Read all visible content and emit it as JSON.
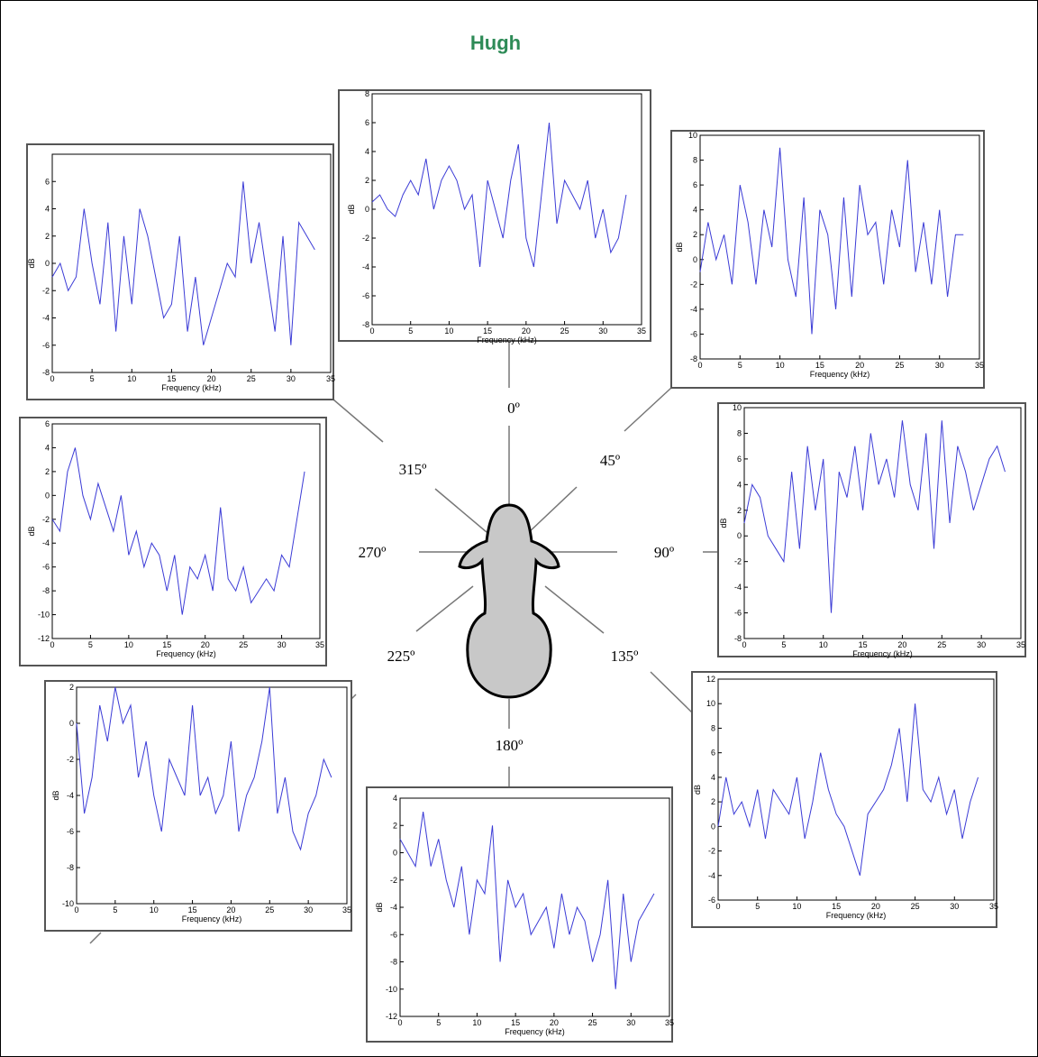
{
  "title": "Hugh",
  "chart_data": [
    {
      "type": "line",
      "annotation": "0º",
      "xlabel": "Frequency (kHz)",
      "ylabel": "dB",
      "color": "#3b3bd6",
      "x": [
        0,
        1,
        2,
        3,
        4,
        5,
        6,
        7,
        8,
        9,
        10,
        11,
        12,
        13,
        14,
        15,
        16,
        17,
        18,
        19,
        20,
        21,
        22,
        23,
        24,
        25,
        26,
        27,
        28,
        29,
        30,
        31,
        32,
        33
      ],
      "values": [
        0.5,
        1,
        0,
        -0.5,
        1,
        2,
        1,
        3.5,
        0,
        2,
        3,
        2,
        0,
        1,
        -4,
        2,
        0,
        -2,
        2,
        4.5,
        -2,
        -4,
        1,
        6,
        -1,
        2,
        1,
        0,
        2,
        -2,
        0,
        -3,
        -2,
        1
      ],
      "xlim": [
        0,
        35
      ],
      "xticks": [
        0,
        5,
        10,
        15,
        20,
        25,
        30,
        35
      ],
      "ylim": [
        -8,
        8
      ],
      "yticks": [
        -8,
        -6,
        -4,
        -2,
        0,
        2,
        4,
        6,
        8
      ]
    },
    {
      "type": "line",
      "annotation": "45º",
      "xlabel": "Frequency (kHz)",
      "ylabel": "dB",
      "color": "#3b3bd6",
      "x": [
        0,
        1,
        2,
        3,
        4,
        5,
        6,
        7,
        8,
        9,
        10,
        11,
        12,
        13,
        14,
        15,
        16,
        17,
        18,
        19,
        20,
        21,
        22,
        23,
        24,
        25,
        26,
        27,
        28,
        29,
        30,
        31,
        32,
        33
      ],
      "values": [
        -1,
        3,
        0,
        2,
        -2,
        6,
        3,
        -2,
        4,
        1,
        9,
        0,
        -3,
        5,
        -6,
        4,
        2,
        -4,
        5,
        -3,
        6,
        2,
        3,
        -2,
        4,
        1,
        8,
        -1,
        3,
        -2,
        4,
        -3,
        2,
        2
      ],
      "xlim": [
        0,
        35
      ],
      "xticks": [
        0,
        5,
        10,
        15,
        20,
        25,
        30,
        35
      ],
      "ylim": [
        -8,
        10
      ],
      "yticks": [
        -8,
        -6,
        -4,
        -2,
        0,
        2,
        4,
        6,
        8,
        10
      ]
    },
    {
      "type": "line",
      "annotation": "90º",
      "xlabel": "Frequency (kHz)",
      "ylabel": "dB",
      "color": "#3b3bd6",
      "x": [
        0,
        1,
        2,
        3,
        4,
        5,
        6,
        7,
        8,
        9,
        10,
        11,
        12,
        13,
        14,
        15,
        16,
        17,
        18,
        19,
        20,
        21,
        22,
        23,
        24,
        25,
        26,
        27,
        28,
        29,
        30,
        31,
        32,
        33
      ],
      "values": [
        1,
        4,
        3,
        0,
        -1,
        -2,
        5,
        -1,
        7,
        2,
        6,
        -6,
        5,
        3,
        7,
        2,
        8,
        4,
        6,
        3,
        9,
        4,
        2,
        8,
        -1,
        9,
        1,
        7,
        5,
        2,
        4,
        6,
        7,
        5
      ],
      "xlim": [
        0,
        35
      ],
      "xticks": [
        0,
        5,
        10,
        15,
        20,
        25,
        30,
        35
      ],
      "ylim": [
        -8,
        10
      ],
      "yticks": [
        -8,
        -6,
        -4,
        -2,
        0,
        2,
        4,
        6,
        8,
        10
      ]
    },
    {
      "type": "line",
      "annotation": "135º",
      "xlabel": "Frequency (kHz)",
      "ylabel": "dB",
      "color": "#3b3bd6",
      "x": [
        0,
        1,
        2,
        3,
        4,
        5,
        6,
        7,
        8,
        9,
        10,
        11,
        12,
        13,
        14,
        15,
        16,
        17,
        18,
        19,
        20,
        21,
        22,
        23,
        24,
        25,
        26,
        27,
        28,
        29,
        30,
        31,
        32,
        33
      ],
      "values": [
        0,
        4,
        1,
        2,
        0,
        3,
        -1,
        3,
        2,
        1,
        4,
        -1,
        2,
        6,
        3,
        1,
        0,
        -2,
        -4,
        1,
        2,
        3,
        5,
        8,
        2,
        10,
        3,
        2,
        4,
        1,
        3,
        -1,
        2,
        4
      ],
      "xlim": [
        0,
        35
      ],
      "xticks": [
        0,
        5,
        10,
        15,
        20,
        25,
        30,
        35
      ],
      "ylim": [
        -6,
        12
      ],
      "yticks": [
        -6,
        -4,
        -2,
        0,
        2,
        4,
        6,
        8,
        10,
        12
      ]
    },
    {
      "type": "line",
      "annotation": "180º",
      "xlabel": "Frequency (kHz)",
      "ylabel": "dB",
      "color": "#3b3bd6",
      "x": [
        0,
        1,
        2,
        3,
        4,
        5,
        6,
        7,
        8,
        9,
        10,
        11,
        12,
        13,
        14,
        15,
        16,
        17,
        18,
        19,
        20,
        21,
        22,
        23,
        24,
        25,
        26,
        27,
        28,
        29,
        30,
        31,
        32,
        33
      ],
      "values": [
        1,
        0,
        -1,
        3,
        -1,
        1,
        -2,
        -4,
        -1,
        -6,
        -2,
        -3,
        2,
        -8,
        -2,
        -4,
        -3,
        -6,
        -5,
        -4,
        -7,
        -3,
        -6,
        -4,
        -5,
        -8,
        -6,
        -2,
        -10,
        -3,
        -8,
        -5,
        -4,
        -3
      ],
      "xlim": [
        0,
        35
      ],
      "xticks": [
        0,
        5,
        10,
        15,
        20,
        25,
        30,
        35
      ],
      "ylim": [
        -12,
        4
      ],
      "yticks": [
        -12,
        -10,
        -8,
        -6,
        -4,
        -2,
        0,
        2,
        4
      ]
    },
    {
      "type": "line",
      "annotation": "225º",
      "xlabel": "Frequency (kHz)",
      "ylabel": "dB",
      "color": "#3b3bd6",
      "x": [
        0,
        1,
        2,
        3,
        4,
        5,
        6,
        7,
        8,
        9,
        10,
        11,
        12,
        13,
        14,
        15,
        16,
        17,
        18,
        19,
        20,
        21,
        22,
        23,
        24,
        25,
        26,
        27,
        28,
        29,
        30,
        31,
        32,
        33
      ],
      "values": [
        0,
        -5,
        -3,
        1,
        -1,
        2,
        0,
        1,
        -3,
        -1,
        -4,
        -6,
        -2,
        -3,
        -4,
        1,
        -4,
        -3,
        -5,
        -4,
        -1,
        -6,
        -4,
        -3,
        -1,
        2,
        -5,
        -3,
        -6,
        -7,
        -5,
        -4,
        -2,
        -3
      ],
      "xlim": [
        0,
        35
      ],
      "xticks": [
        0,
        5,
        10,
        15,
        20,
        25,
        30,
        35
      ],
      "ylim": [
        -10,
        2
      ],
      "yticks": [
        -10,
        -8,
        -6,
        -4,
        -2,
        0,
        2
      ]
    },
    {
      "type": "line",
      "annotation": "270º",
      "xlabel": "Frequency (kHz)",
      "ylabel": "dB",
      "color": "#3b3bd6",
      "x": [
        0,
        1,
        2,
        3,
        4,
        5,
        6,
        7,
        8,
        9,
        10,
        11,
        12,
        13,
        14,
        15,
        16,
        17,
        18,
        19,
        20,
        21,
        22,
        23,
        24,
        25,
        26,
        27,
        28,
        29,
        30,
        31,
        32,
        33
      ],
      "values": [
        -2,
        -3,
        2,
        4,
        0,
        -2,
        1,
        -1,
        -3,
        0,
        -5,
        -3,
        -6,
        -4,
        -5,
        -8,
        -5,
        -10,
        -6,
        -7,
        -5,
        -8,
        -1,
        -7,
        -8,
        -6,
        -9,
        -8,
        -7,
        -8,
        -5,
        -6,
        -2,
        2
      ],
      "xlim": [
        0,
        35
      ],
      "xticks": [
        0,
        5,
        10,
        15,
        20,
        25,
        30,
        35
      ],
      "ylim": [
        -12,
        6
      ],
      "yticks": [
        -12,
        -10,
        -8,
        -6,
        -4,
        -2,
        0,
        2,
        4,
        6
      ]
    },
    {
      "type": "line",
      "annotation": "315º",
      "xlabel": "Frequency (kHz)",
      "ylabel": "dB",
      "color": "#3b3bd6",
      "x": [
        0,
        1,
        2,
        3,
        4,
        5,
        6,
        7,
        8,
        9,
        10,
        11,
        12,
        13,
        14,
        15,
        16,
        17,
        18,
        19,
        20,
        21,
        22,
        23,
        24,
        25,
        26,
        27,
        28,
        29,
        30,
        31,
        32,
        33
      ],
      "values": [
        -1,
        0,
        -2,
        -1,
        4,
        0,
        -3,
        3,
        -5,
        2,
        -3,
        4,
        2,
        -1,
        -4,
        -3,
        2,
        -5,
        -1,
        -6,
        -4,
        -2,
        0,
        -1,
        6,
        0,
        3,
        -1,
        -5,
        2,
        -6,
        3,
        2,
        1
      ],
      "xlim": [
        0,
        35
      ],
      "xticks": [
        0,
        5,
        10,
        15,
        20,
        25,
        30,
        35
      ],
      "ylim": [
        -8,
        8
      ],
      "yticks": [
        -8,
        -6,
        -4,
        -2,
        0,
        2,
        4,
        6
      ]
    }
  ]
}
